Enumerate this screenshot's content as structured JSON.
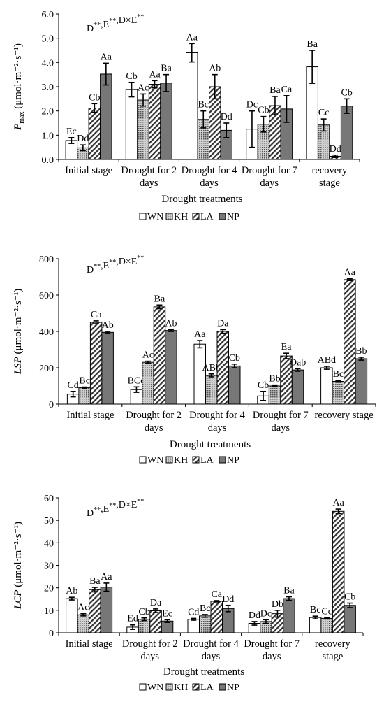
{
  "legend": [
    "WN",
    "KH",
    "LA",
    "NP"
  ],
  "colors": {
    "WN": "#ffffff",
    "KH": "#bcbcbc",
    "LA": "#ffffff",
    "NP": "#777777",
    "axis": "#000000"
  },
  "chart_data": [
    {
      "type": "bar",
      "significance": "D**,E**,D×E**",
      "ylabel": "Pmax (μmol·m⁻²·s⁻¹)",
      "ylabel_main": "P",
      "ylabel_sub": "max",
      "ylabel_unit": "(μmol·m⁻²·s⁻¹)",
      "xlabel": "Drought treatments",
      "ylim": [
        0,
        6
      ],
      "yticks": [
        "0.0",
        "1.0",
        "2.0",
        "3.0",
        "4.0",
        "5.0",
        "6.0"
      ],
      "categories": [
        [
          "Initial stage"
        ],
        [
          "Drought for 2",
          "days"
        ],
        [
          "Drought for 4",
          "days"
        ],
        [
          "Drought for 7",
          "days"
        ],
        [
          "recovery",
          "stage"
        ]
      ],
      "series": [
        {
          "name": "WN",
          "values": [
            0.78,
            2.88,
            4.4,
            1.25,
            3.82
          ],
          "errors": [
            0.12,
            0.3,
            0.38,
            0.75,
            0.68
          ],
          "labels": [
            "Ec",
            "Cb",
            "Aa",
            "Dc",
            "Ba"
          ]
        },
        {
          "name": "KH",
          "values": [
            0.48,
            2.45,
            1.65,
            1.45,
            1.42
          ],
          "errors": [
            0.12,
            0.25,
            0.35,
            0.32,
            0.25
          ],
          "labels": [
            "Dd",
            "Ac",
            "Bc",
            "Cb",
            "Cc"
          ]
        },
        {
          "name": "LA",
          "values": [
            2.12,
            3.1,
            3.0,
            2.22,
            0.13
          ],
          "errors": [
            0.18,
            0.15,
            0.5,
            0.38,
            0.05
          ],
          "labels": [
            "Cb",
            "Aa",
            "Ab",
            "Ba",
            "Dd"
          ]
        },
        {
          "name": "NP",
          "values": [
            3.52,
            3.15,
            1.2,
            2.08,
            2.2
          ],
          "errors": [
            0.45,
            0.35,
            0.3,
            0.55,
            0.3
          ],
          "labels": [
            "Aa",
            "Ba",
            "Dd",
            "Ca",
            "Cb"
          ]
        }
      ]
    },
    {
      "type": "bar",
      "significance": "D**,E**,D×E**",
      "ylabel": "LSP (μmol·m⁻²·s⁻¹)",
      "ylabel_main": "LSP",
      "ylabel_sub": "",
      "ylabel_unit": "(μmol·m⁻²·s⁻¹)",
      "xlabel": "Drought treatments",
      "ylim": [
        0,
        800
      ],
      "yticks": [
        "0",
        "200",
        "400",
        "600",
        "800"
      ],
      "categories": [
        [
          "Initial stage"
        ],
        [
          "Drought for 2",
          "days"
        ],
        [
          "Drought for 4",
          "days"
        ],
        [
          "Drought for 7",
          "days"
        ],
        [
          "recovery stage"
        ]
      ],
      "series": [
        {
          "name": "WN",
          "values": [
            55,
            80,
            330,
            45,
            200
          ],
          "errors": [
            15,
            15,
            20,
            25,
            8
          ],
          "labels": [
            "Cd",
            "BCd",
            "Aa",
            "Cb",
            "ABd"
          ]
        },
        {
          "name": "KH",
          "values": [
            90,
            230,
            158,
            100,
            125
          ],
          "errors": [
            4,
            6,
            8,
            5,
            5
          ],
          "labels": [
            "Bc",
            "Ac",
            "ABb",
            "Bb",
            "Bc"
          ]
        },
        {
          "name": "LA",
          "values": [
            450,
            535,
            400,
            265,
            685
          ],
          "errors": [
            8,
            10,
            10,
            15,
            5
          ],
          "labels": [
            "Ca",
            "Ba",
            "Da",
            "Ea",
            "Aa"
          ]
        },
        {
          "name": "NP",
          "values": [
            395,
            405,
            210,
            188,
            250
          ],
          "errors": [
            5,
            5,
            10,
            7,
            8
          ],
          "labels": [
            "Ab",
            "Ab",
            "Cb",
            "Dab",
            "Bb"
          ]
        }
      ]
    },
    {
      "type": "bar",
      "significance": "D**,E**,D×E**",
      "ylabel": "LCP (μmol·m⁻²·s⁻¹)",
      "ylabel_main": "LCP",
      "ylabel_sub": "",
      "ylabel_unit": "(μmol·m⁻²·s⁻¹)",
      "xlabel": "Drought treatments",
      "ylim": [
        0,
        60
      ],
      "yticks": [
        "0",
        "10",
        "20",
        "30",
        "40",
        "50",
        "60"
      ],
      "categories": [
        [
          "Initial stage"
        ],
        [
          "Drought for 2",
          "days"
        ],
        [
          "Drought for 4",
          "days"
        ],
        [
          "Drought for 7",
          "days"
        ],
        [
          "recovery",
          "stage"
        ]
      ],
      "series": [
        {
          "name": "WN",
          "values": [
            15.2,
            2.5,
            6.0,
            4.2,
            6.8
          ],
          "errors": [
            0.6,
            1.0,
            0.4,
            0.8,
            0.6
          ],
          "labels": [
            "Ab",
            "Ed",
            "Cd",
            "Dd",
            "Bc"
          ]
        },
        {
          "name": "KH",
          "values": [
            8.0,
            6.0,
            7.5,
            5.0,
            6.4
          ],
          "errors": [
            0.5,
            0.6,
            0.6,
            0.8,
            0.3
          ],
          "labels": [
            "Ac",
            "Cb",
            "Bc",
            "Dc",
            "Cc"
          ]
        },
        {
          "name": "LA",
          "values": [
            19.2,
            9.8,
            14.0,
            8.5,
            54.0
          ],
          "errors": [
            1.0,
            0.8,
            0.3,
            1.5,
            1.0
          ],
          "labels": [
            "Ba",
            "Da",
            "Ca",
            "Db",
            "Aa"
          ]
        },
        {
          "name": "NP",
          "values": [
            20.3,
            5.2,
            10.8,
            15.2,
            12.2
          ],
          "errors": [
            1.8,
            0.6,
            1.4,
            0.8,
            1.0
          ],
          "labels": [
            "Aa",
            "Ec",
            "Dd",
            "Ba",
            "Cb"
          ]
        }
      ]
    }
  ]
}
